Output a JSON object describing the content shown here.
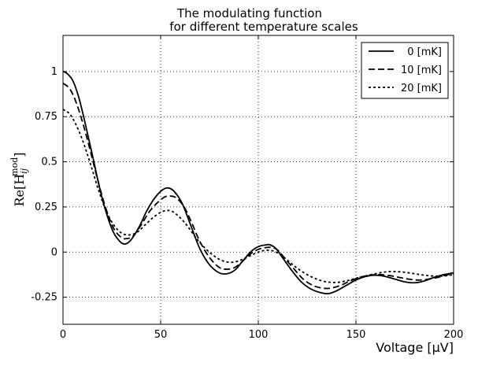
{
  "chart_data": {
    "type": "line",
    "title": [
      "The modulating function",
      "for different temperature scales"
    ],
    "xlabel": "Voltage [μV]",
    "ylabel": "Re[H",
    "ylabel_sub": "ij",
    "ylabel_sup": "mod",
    "ylabel_close": "]",
    "xlim": [
      0,
      200
    ],
    "ylim": [
      -0.4,
      1.2
    ],
    "xticks": [
      0,
      50,
      100,
      150,
      200
    ],
    "xtick_labels": [
      "0",
      "50",
      "100",
      "150",
      "200"
    ],
    "yticks": [
      -0.25,
      0,
      0.25,
      0.5,
      0.75,
      1
    ],
    "ytick_labels": [
      "-0.25",
      "0",
      "0.25",
      "0.5",
      "0.75",
      "1"
    ],
    "grid": true,
    "legend_position": "top-right",
    "series": [
      {
        "name": "0 [mK]",
        "dash": "solid",
        "x": [
          0,
          2,
          5,
          8,
          11,
          15,
          20,
          25,
          29,
          32,
          35,
          39,
          43,
          47,
          51,
          54,
          57,
          61,
          65,
          70,
          75,
          80,
          84,
          88,
          92,
          96,
          100,
          104,
          106,
          109,
          113,
          117,
          122,
          127,
          132,
          136,
          140,
          145,
          150,
          155,
          160,
          165,
          170,
          175,
          180,
          185,
          190,
          195,
          200
        ],
        "y": [
          1.0,
          0.99,
          0.95,
          0.86,
          0.73,
          0.54,
          0.3,
          0.13,
          0.06,
          0.045,
          0.07,
          0.14,
          0.23,
          0.3,
          0.345,
          0.355,
          0.335,
          0.27,
          0.16,
          0.02,
          -0.07,
          -0.115,
          -0.12,
          -0.1,
          -0.05,
          0.0,
          0.03,
          0.04,
          0.04,
          0.02,
          -0.04,
          -0.1,
          -0.165,
          -0.205,
          -0.225,
          -0.23,
          -0.215,
          -0.185,
          -0.155,
          -0.135,
          -0.128,
          -0.135,
          -0.15,
          -0.165,
          -0.17,
          -0.16,
          -0.14,
          -0.125,
          -0.115
        ]
      },
      {
        "name": "10 [mK]",
        "dash": "long",
        "x": [
          0,
          3,
          6,
          10,
          14,
          18,
          22,
          26,
          30,
          33,
          36,
          40,
          44,
          48,
          52,
          55,
          58,
          62,
          66,
          70,
          75,
          80,
          84,
          88,
          92,
          96,
          100,
          104,
          107,
          110,
          114,
          118,
          123,
          128,
          133,
          137,
          142,
          147,
          152,
          157,
          162,
          167,
          172,
          177,
          182,
          187,
          192,
          197,
          200
        ],
        "y": [
          0.935,
          0.91,
          0.85,
          0.72,
          0.56,
          0.39,
          0.24,
          0.13,
          0.08,
          0.075,
          0.09,
          0.15,
          0.22,
          0.27,
          0.305,
          0.31,
          0.3,
          0.25,
          0.16,
          0.06,
          -0.03,
          -0.085,
          -0.095,
          -0.085,
          -0.05,
          -0.01,
          0.015,
          0.025,
          0.025,
          0.01,
          -0.04,
          -0.09,
          -0.15,
          -0.185,
          -0.2,
          -0.2,
          -0.185,
          -0.16,
          -0.14,
          -0.128,
          -0.125,
          -0.13,
          -0.14,
          -0.15,
          -0.155,
          -0.15,
          -0.14,
          -0.125,
          -0.12
        ]
      },
      {
        "name": "20 [mK]",
        "dash": "short",
        "x": [
          0,
          3,
          6,
          10,
          14,
          18,
          22,
          26,
          30,
          34,
          38,
          42,
          46,
          50,
          53,
          56,
          60,
          64,
          68,
          72,
          76,
          80,
          84,
          88,
          92,
          96,
          100,
          104,
          108,
          112,
          116,
          120,
          125,
          130,
          135,
          140,
          145,
          150,
          155,
          160,
          165,
          170,
          175,
          180,
          185,
          190,
          195,
          200
        ],
        "y": [
          0.79,
          0.77,
          0.72,
          0.62,
          0.49,
          0.35,
          0.23,
          0.15,
          0.105,
          0.095,
          0.11,
          0.15,
          0.19,
          0.22,
          0.23,
          0.225,
          0.19,
          0.14,
          0.08,
          0.03,
          -0.01,
          -0.04,
          -0.055,
          -0.055,
          -0.04,
          -0.02,
          0.0,
          0.01,
          0.005,
          -0.02,
          -0.055,
          -0.09,
          -0.125,
          -0.15,
          -0.165,
          -0.168,
          -0.16,
          -0.145,
          -0.132,
          -0.12,
          -0.11,
          -0.108,
          -0.112,
          -0.12,
          -0.128,
          -0.133,
          -0.132,
          -0.125
        ]
      }
    ]
  }
}
